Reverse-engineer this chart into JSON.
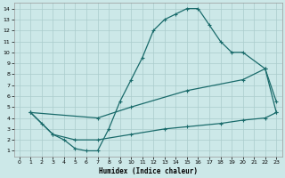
{
  "xlabel": "Humidex (Indice chaleur)",
  "background_color": "#cce8e8",
  "grid_color": "#aacccc",
  "line_color": "#1a6b6b",
  "xlim": [
    -0.5,
    23.5
  ],
  "ylim": [
    0.5,
    14.5
  ],
  "xticks": [
    0,
    1,
    2,
    3,
    4,
    5,
    6,
    7,
    8,
    9,
    10,
    11,
    12,
    13,
    14,
    15,
    16,
    17,
    18,
    19,
    20,
    21,
    22,
    23
  ],
  "yticks": [
    1,
    2,
    3,
    4,
    5,
    6,
    7,
    8,
    9,
    10,
    11,
    12,
    13,
    14
  ],
  "line1_x": [
    1,
    2,
    3,
    4,
    5,
    6,
    7,
    8,
    9,
    10,
    11,
    12,
    13,
    14,
    15,
    16,
    17,
    18,
    19,
    20,
    22,
    23
  ],
  "line1_y": [
    4.5,
    3.5,
    2.5,
    2.0,
    1.2,
    1.0,
    1.0,
    3.0,
    5.5,
    7.5,
    9.5,
    12.0,
    13.0,
    13.5,
    14.0,
    14.0,
    12.5,
    11.0,
    10.0,
    10.0,
    8.5,
    4.5
  ],
  "line2_x": [
    1,
    7,
    10,
    15,
    20,
    22,
    23
  ],
  "line2_y": [
    4.5,
    4.0,
    5.0,
    6.5,
    7.5,
    8.5,
    5.5
  ],
  "line3_x": [
    1,
    3,
    5,
    7,
    10,
    13,
    15,
    18,
    20,
    22,
    23
  ],
  "line3_y": [
    4.5,
    2.5,
    2.0,
    2.0,
    2.5,
    3.0,
    3.2,
    3.5,
    3.8,
    4.0,
    4.5
  ]
}
